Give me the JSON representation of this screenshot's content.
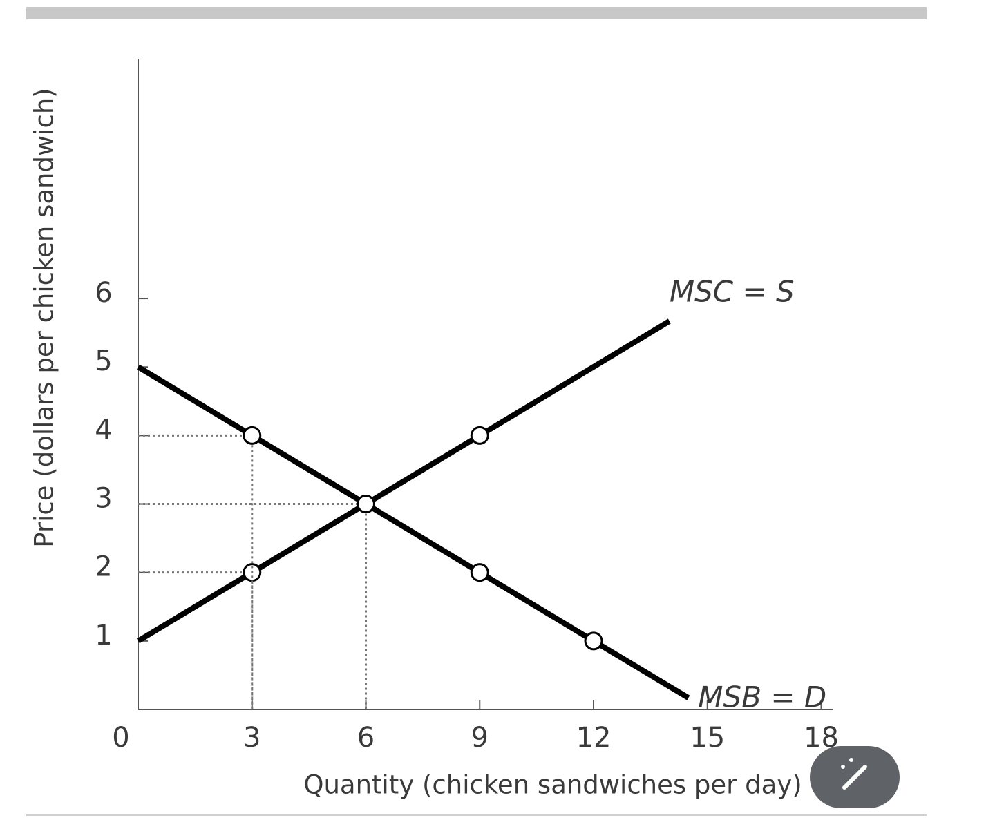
{
  "chart_data": {
    "type": "line",
    "x_label": "Quantity (chicken sandwiches per day)",
    "y_label": "Price (dollars per chicken sandwich)",
    "xlim": [
      0,
      18.3
    ],
    "ylim": [
      0,
      9.5
    ],
    "xticks": [
      0,
      3,
      6,
      9,
      12,
      15,
      18
    ],
    "yticks": [
      1,
      2,
      3,
      4,
      5,
      6
    ],
    "series": [
      {
        "name": "MSC = S",
        "color": "#000000",
        "x": [
          0,
          3,
          6,
          9,
          14
        ],
        "values": [
          1,
          2,
          3,
          4,
          5.67
        ]
      },
      {
        "name": "MSB = D",
        "color": "#000000",
        "x": [
          0,
          3,
          6,
          9,
          12,
          14.5
        ],
        "values": [
          5,
          4,
          3,
          2,
          1,
          0.17
        ]
      }
    ]
  }
}
